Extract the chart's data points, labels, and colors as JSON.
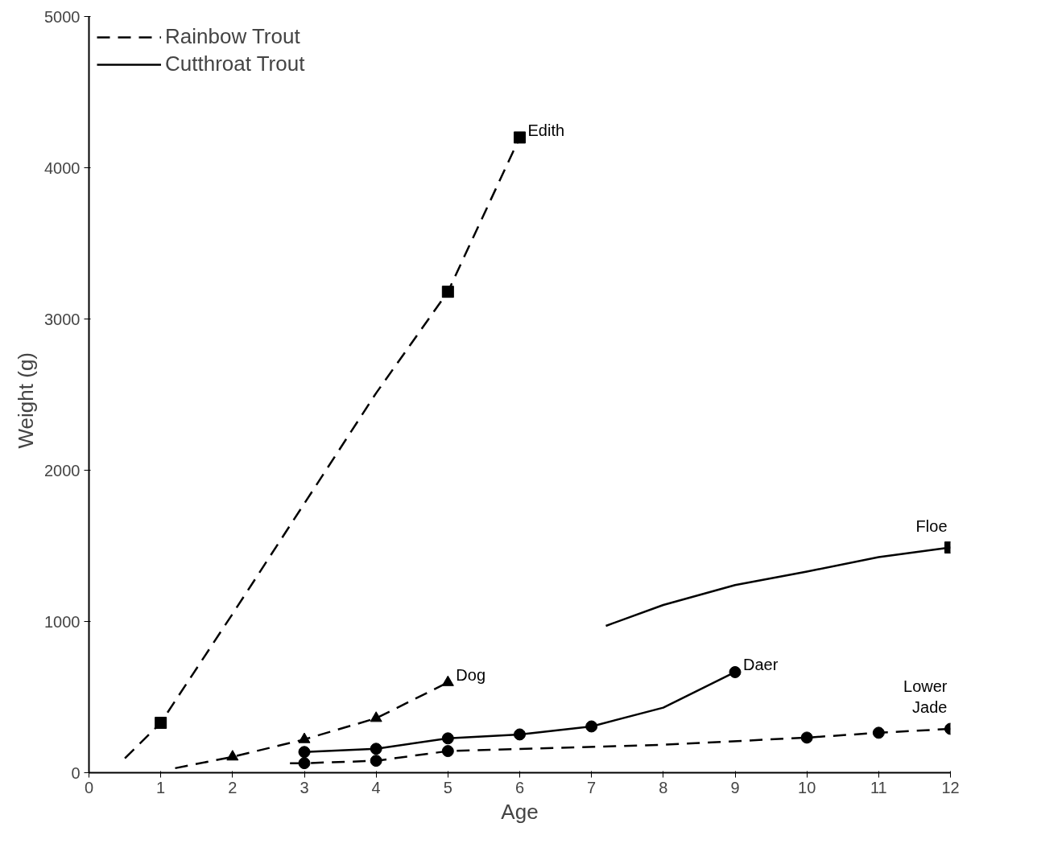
{
  "chart_data": {
    "type": "line",
    "xlabel": "Age",
    "ylabel": "Weight   (g)",
    "xlim": [
      0,
      12
    ],
    "ylim": [
      0,
      5000
    ],
    "xticks": [
      0,
      1,
      2,
      3,
      4,
      5,
      6,
      7,
      8,
      9,
      10,
      11,
      12
    ],
    "yticks": [
      0,
      1000,
      2000,
      3000,
      4000,
      5000
    ],
    "grid": false,
    "legend": "top left",
    "series": [
      {
        "name": "Rainbow Trout",
        "color": "#000000",
        "line_style": "dashed",
        "x": [
          0.5,
          1,
          2,
          3,
          4,
          5,
          6
        ],
        "values": [
          95,
          330,
          1050,
          1780,
          2510,
          3180,
          4200
        ]
      },
      {
        "name": "Cutthroat Trout",
        "color": "#000000",
        "line_style": "solid",
        "x": [
          7.2,
          8,
          9,
          10,
          11,
          12
        ],
        "values": [
          971,
          1109,
          1241,
          1330,
          1425,
          1489
        ]
      },
      {
        "name": "Edith",
        "type": "scatter",
        "color": "#000000",
        "marker": "square",
        "x": [
          1,
          5,
          6
        ],
        "values": [
          330,
          3180,
          4200
        ]
      },
      {
        "color": "#000000",
        "line_style": "dashed",
        "x": [
          1.2,
          2,
          3,
          4,
          5
        ],
        "values": [
          30,
          105,
          220,
          360,
          597
        ]
      },
      {
        "name": "Dog",
        "type": "scatter",
        "color": "#000000",
        "marker": "triangle",
        "x": [
          2,
          3,
          4,
          5
        ],
        "values": [
          105,
          220,
          360,
          597
        ]
      },
      {
        "color": "#000000",
        "line_style": "solid",
        "x": [
          3,
          4,
          5,
          6,
          7,
          8,
          9
        ],
        "values": [
          137,
          158,
          227,
          253,
          306,
          430,
          665
        ]
      },
      {
        "name": "Daer",
        "type": "scatter",
        "color": "#000000",
        "marker": "circle",
        "x": [
          3,
          4,
          5,
          6,
          7,
          9
        ],
        "values": [
          137,
          158,
          227,
          253,
          306,
          665
        ]
      },
      {
        "color": "#000000",
        "line_style": "dashed",
        "x": [
          2.8,
          3,
          4,
          5,
          8,
          10,
          11,
          12
        ],
        "values": [
          63,
          63,
          79,
          143,
          185,
          232,
          264,
          290
        ]
      },
      {
        "name": "Lower\nJade",
        "type": "scatter",
        "color": "#000000",
        "marker": "circle",
        "x": [
          3,
          4,
          5,
          10,
          11,
          12
        ],
        "values": [
          63,
          79,
          143,
          232,
          264,
          290
        ]
      },
      {
        "name": "Floe",
        "type": "scatter",
        "color": "#000000",
        "marker": "square",
        "x": [
          12
        ],
        "values": [
          1489
        ]
      }
    ]
  }
}
